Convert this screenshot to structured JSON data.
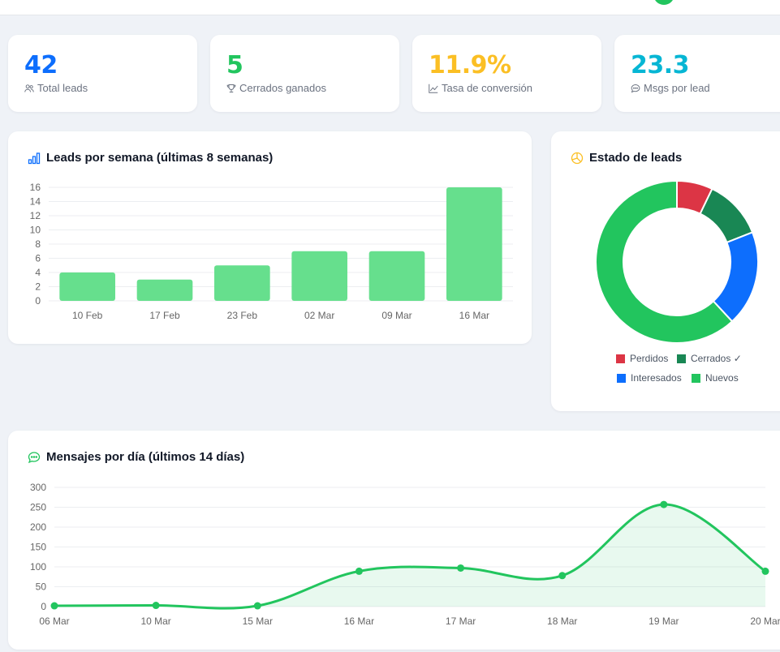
{
  "colors": {
    "blue": "#0d6efd",
    "green": "#22c55e",
    "yellow": "#fbbf24",
    "cyan": "#06b6d4",
    "red": "#dc3545",
    "darkgreen": "#198754",
    "bar": "#66df8d"
  },
  "stats": [
    {
      "value": "42",
      "label": "Total leads",
      "icon": "users-icon",
      "color": "#0d6efd"
    },
    {
      "value": "5",
      "label": "Cerrados ganados",
      "icon": "trophy-icon",
      "color": "#22c55e"
    },
    {
      "value": "11.9%",
      "label": "Tasa de conversión",
      "icon": "graph-up-icon",
      "color": "#fbbf24"
    },
    {
      "value": "23.3",
      "label": "Msgs por lead",
      "icon": "chat-icon",
      "color": "#06b6d4"
    }
  ],
  "weekly": {
    "title": "Leads por semana (últimas 8 semanas)",
    "chart_data": {
      "type": "bar",
      "categories": [
        "10 Feb",
        "17 Feb",
        "23 Feb",
        "02 Mar",
        "09 Mar",
        "16 Mar"
      ],
      "values": [
        4,
        3,
        5,
        7,
        7,
        16
      ],
      "ylim": [
        0,
        16
      ],
      "yticks": [
        0,
        2,
        4,
        6,
        8,
        10,
        12,
        14,
        16
      ],
      "grid": true
    }
  },
  "status": {
    "title": "Estado de leads",
    "chart_data": {
      "type": "pie",
      "categories": [
        "Perdidos",
        "Cerrados ✓",
        "Interesados",
        "Nuevos"
      ],
      "values": [
        3,
        5,
        8,
        26
      ],
      "colors": [
        "#dc3545",
        "#198754",
        "#0d6efd",
        "#22c55e"
      ],
      "legend": "bottom"
    }
  },
  "daily": {
    "title": "Mensajes por día (últimos 14 días)",
    "chart_data": {
      "type": "area",
      "categories": [
        "06 Mar",
        "10 Mar",
        "15 Mar",
        "16 Mar",
        "17 Mar",
        "18 Mar",
        "19 Mar",
        "20 Mar"
      ],
      "values": [
        2,
        3,
        2,
        89,
        97,
        78,
        257,
        89
      ],
      "ylim": [
        0,
        300
      ],
      "yticks": [
        0,
        50,
        100,
        150,
        200,
        250,
        300
      ],
      "grid": true
    }
  }
}
